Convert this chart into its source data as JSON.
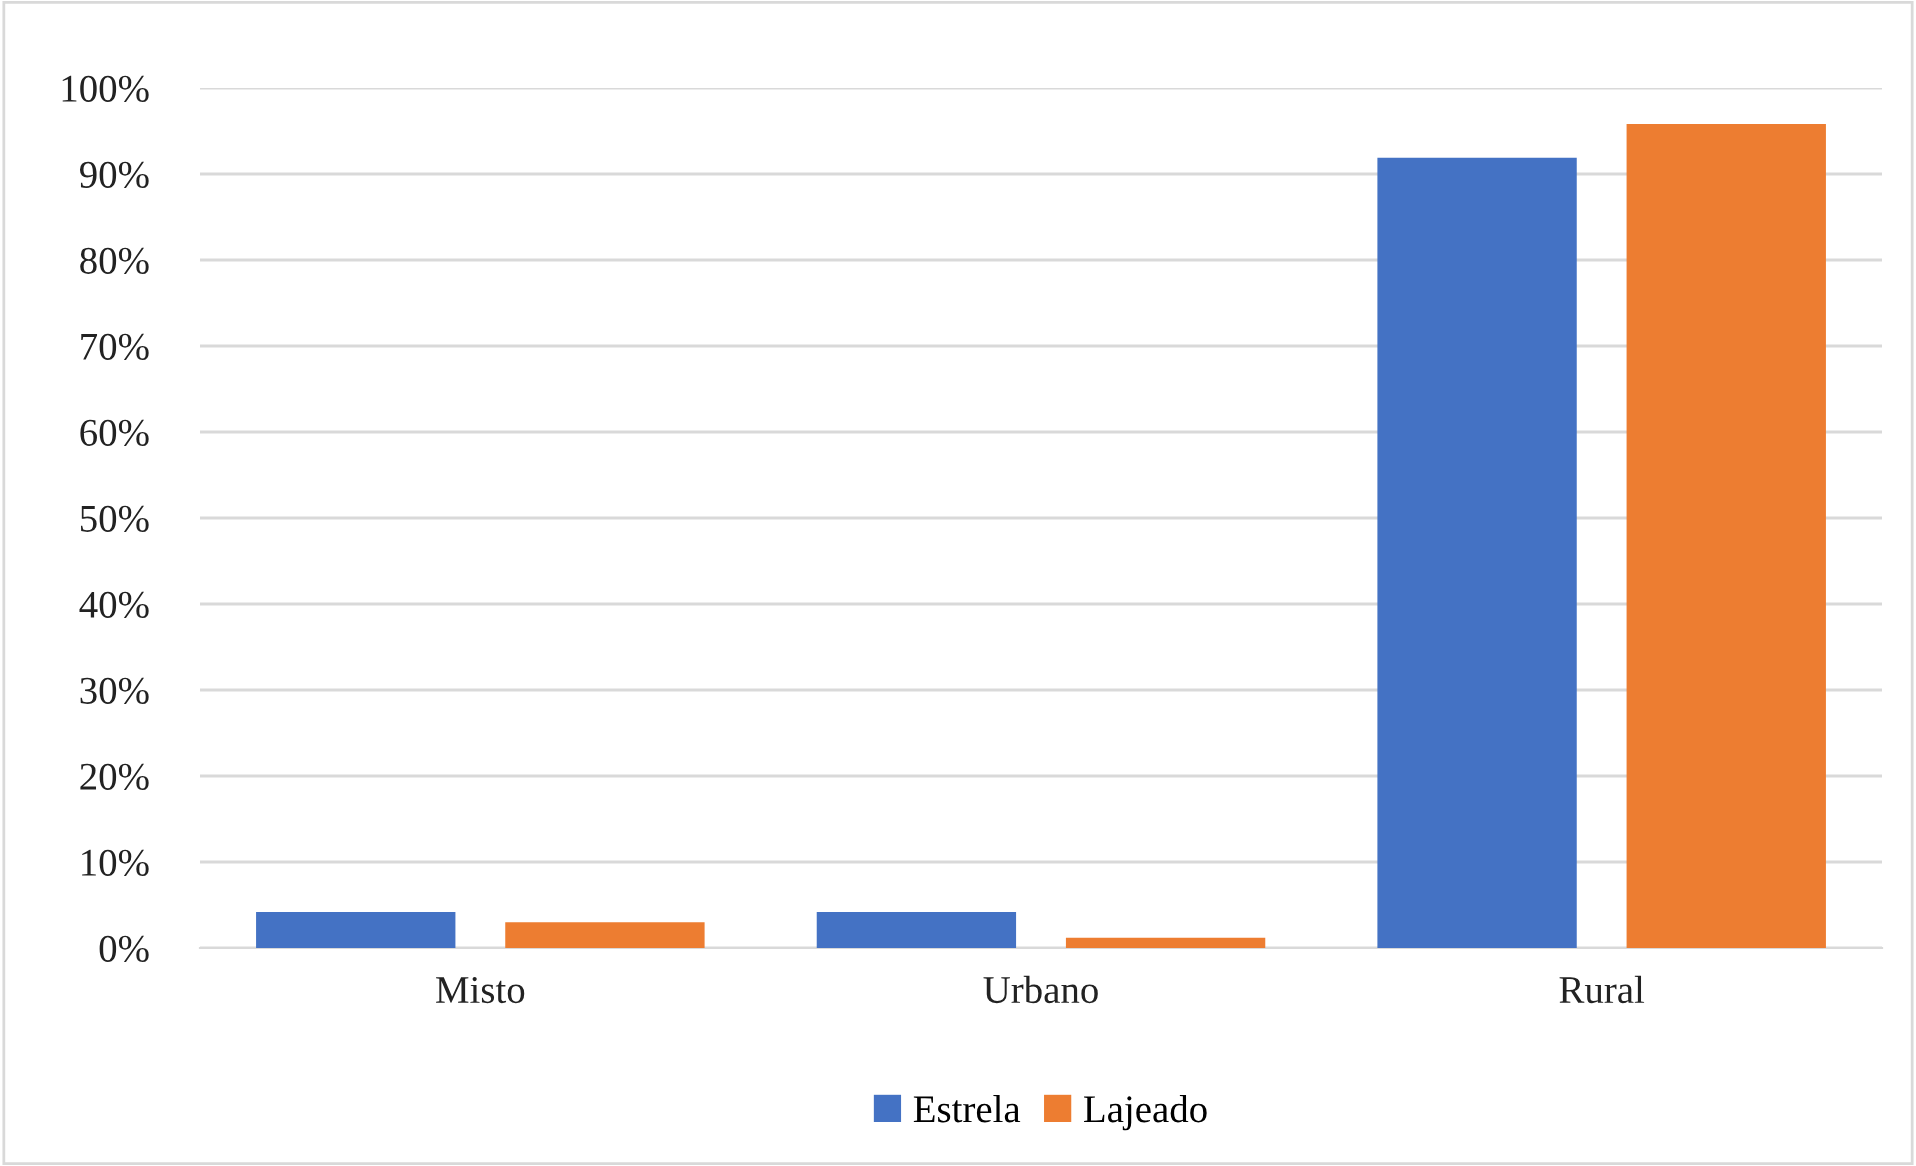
{
  "chart_data": {
    "type": "bar",
    "categories": [
      "Misto",
      "Urbano",
      "Rural"
    ],
    "series": [
      {
        "name": "Estrela",
        "color": "#4472c4",
        "values": [
          4.2,
          4.2,
          91.9
        ]
      },
      {
        "name": "Lajeado",
        "color": "#ed7d31",
        "values": [
          3.0,
          1.2,
          95.8
        ]
      }
    ],
    "ylim": [
      0,
      100
    ],
    "yticks": [
      {
        "value": 0,
        "label": "0%"
      },
      {
        "value": 10,
        "label": "10%"
      },
      {
        "value": 20,
        "label": "20%"
      },
      {
        "value": 30,
        "label": "30%"
      },
      {
        "value": 40,
        "label": "40%"
      },
      {
        "value": 50,
        "label": "50%"
      },
      {
        "value": 60,
        "label": "60%"
      },
      {
        "value": 70,
        "label": "70%"
      },
      {
        "value": 80,
        "label": "80%"
      },
      {
        "value": 90,
        "label": "90%"
      },
      {
        "value": 100,
        "label": "100%"
      }
    ],
    "grid": "y",
    "legend": "bottom"
  }
}
